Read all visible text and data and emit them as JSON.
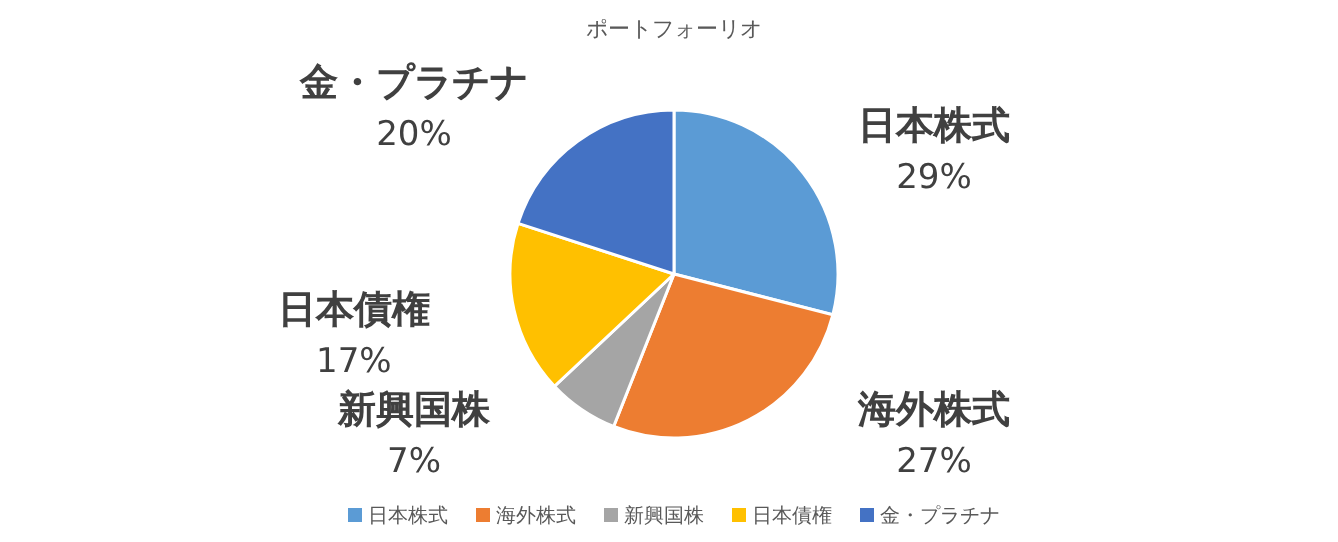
{
  "chart_data": {
    "type": "pie",
    "title": "ポートフォーリオ",
    "categories": [
      "日本株式",
      "海外株式",
      "新興国株",
      "日本債権",
      "金・プラチナ"
    ],
    "values": [
      29,
      27,
      7,
      17,
      20
    ],
    "value_labels": [
      "29%",
      "27%",
      "7%",
      "17%",
      "20%"
    ],
    "colors": [
      "#5b9bd5",
      "#ed7d31",
      "#a5a5a5",
      "#ffc000",
      "#4472c4"
    ],
    "legend": "bottom"
  }
}
